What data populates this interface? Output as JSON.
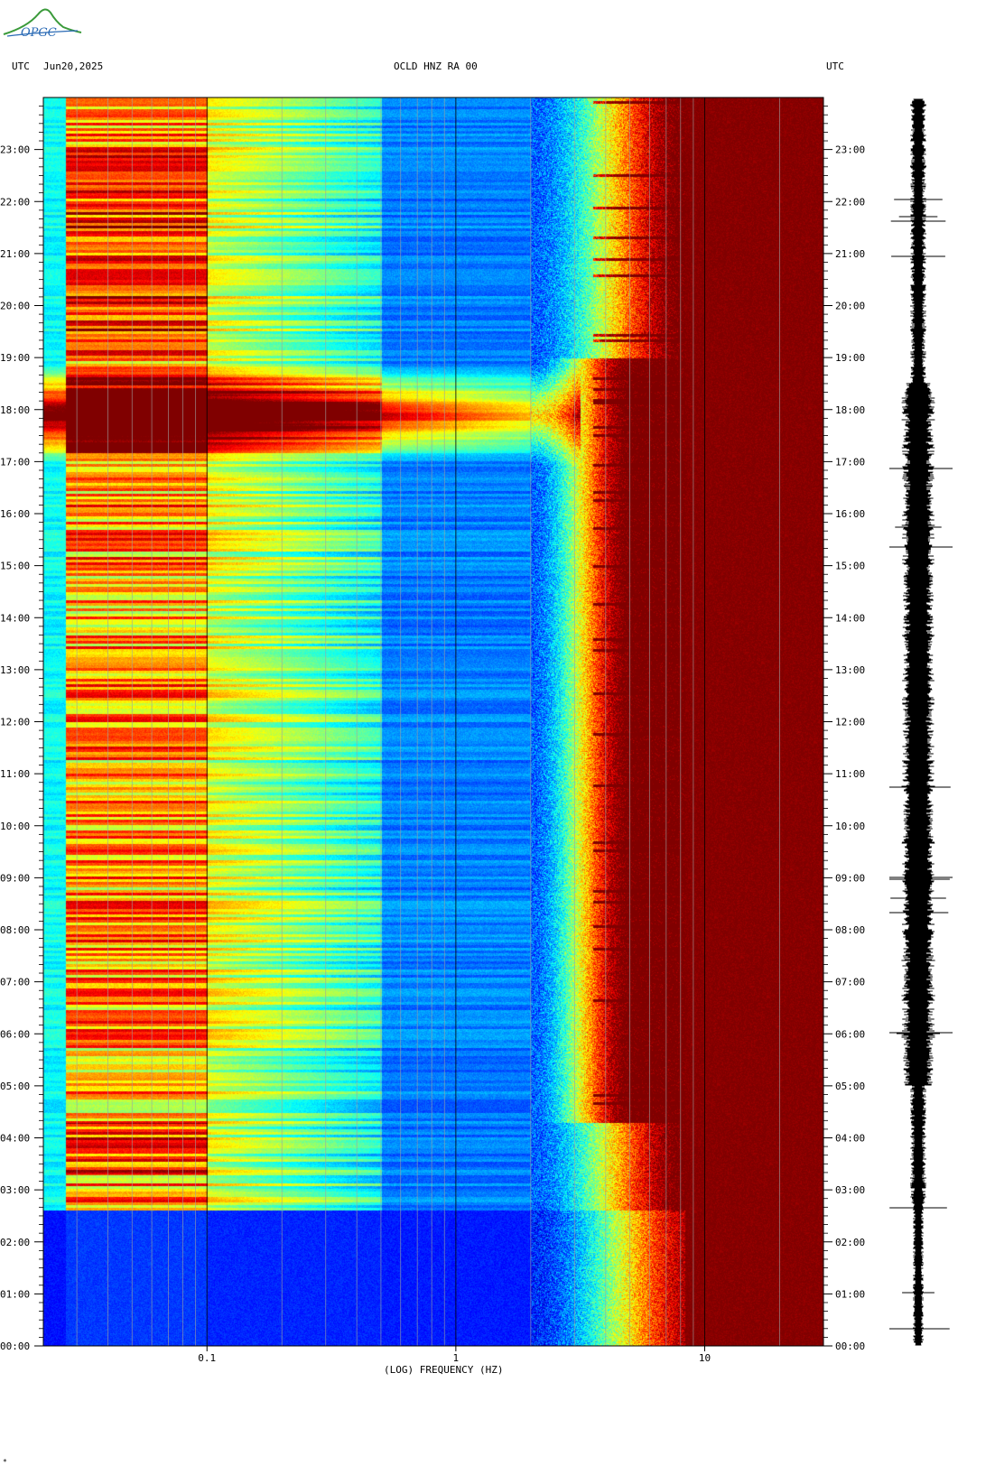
{
  "header": {
    "left_timezone": "UTC",
    "date": "Jun20,2025",
    "station": "OCLD HNZ RA 00",
    "right_timezone": "UTC"
  },
  "logo": {
    "text": "OPGC"
  },
  "footer_mark": "*",
  "chart_data": {
    "type": "heatmap",
    "title": "OCLD HNZ RA 00",
    "xlabel": "(LOG) FREQUENCY (HZ)",
    "ylabel": "UTC",
    "x_scale": "log",
    "x_ticks": [
      {
        "value": 0.1,
        "label": "0.1"
      },
      {
        "value": 1,
        "label": "1"
      },
      {
        "value": 10,
        "label": "10"
      }
    ],
    "xlim": [
      0.022,
      30
    ],
    "ylim_hours": [
      0,
      24
    ],
    "y_ticks": [
      "00:00",
      "01:00",
      "02:00",
      "03:00",
      "04:00",
      "05:00",
      "06:00",
      "07:00",
      "08:00",
      "09:00",
      "10:00",
      "11:00",
      "12:00",
      "13:00",
      "14:00",
      "15:00",
      "16:00",
      "17:00",
      "18:00",
      "19:00",
      "20:00",
      "21:00",
      "22:00",
      "23:00"
    ],
    "colormap": [
      "#00007f",
      "#0000ff",
      "#0080ff",
      "#00ffff",
      "#80ff80",
      "#ffff00",
      "#ff8000",
      "#ff0000",
      "#800000"
    ],
    "colors": {
      "grid_line": "#a0a0a0",
      "decade_line": "#000000",
      "trace": "#000000"
    },
    "trace": "seismogram",
    "notable_features": [
      {
        "time_range": [
          "17:00",
          "18:45"
        ],
        "description": "broadband high-energy event"
      },
      {
        "time_range": [
          "00:00",
          "02:40"
        ],
        "description": "quiet low-frequency band"
      }
    ]
  }
}
